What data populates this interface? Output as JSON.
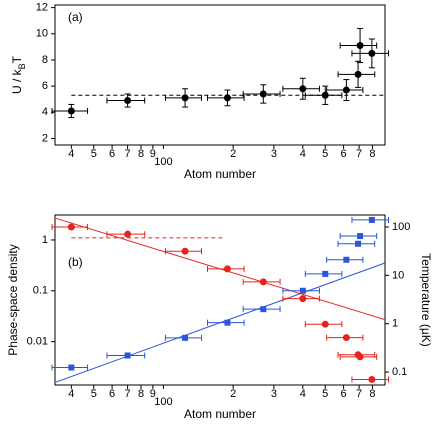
{
  "chart_data": [
    {
      "type": "errorbar",
      "label": "(a)",
      "xlabel": "Atom number",
      "ylabel_parts": [
        "U / k",
        "B",
        "T"
      ],
      "xscale": "log",
      "xlim": [
        34,
        906
      ],
      "xticks": [
        {
          "value": 40,
          "label": "4"
        },
        {
          "value": 50,
          "label": "5"
        },
        {
          "value": 60,
          "label": "6"
        },
        {
          "value": 70,
          "label": "7"
        },
        {
          "value": 80,
          "label": "8"
        },
        {
          "value": 90,
          "label": "9"
        },
        100,
        {
          "value": 200,
          "label": "2"
        },
        {
          "value": 300,
          "label": "3"
        },
        {
          "value": 400,
          "label": "4"
        },
        {
          "value": 500,
          "label": "5"
        },
        {
          "value": 600,
          "label": "6"
        },
        {
          "value": 700,
          "label": "7"
        },
        {
          "value": 800,
          "label": "8"
        }
      ],
      "ylim": [
        1.5,
        12.2
      ],
      "yticks": [
        2,
        4,
        6,
        8,
        10,
        12
      ],
      "series": [
        {
          "color": "#000000",
          "marker": "circle",
          "x": [
            40,
            70,
            124,
            189,
            270,
            400,
            500,
            617,
            693,
            707,
            795
          ],
          "values": [
            4.1,
            4.9,
            5.1,
            5.1,
            5.4,
            5.8,
            5.3,
            5.7,
            6.9,
            9.1,
            8.5
          ],
          "xerr": [
            7,
            13,
            22,
            34,
            49,
            72,
            90,
            110,
            125,
            127,
            143
          ],
          "yerr": [
            0.5,
            0.5,
            0.7,
            0.6,
            0.7,
            0.8,
            0.7,
            0.8,
            1.0,
            1.3,
            1.1
          ]
        }
      ],
      "reference_line": {
        "y": 5.3,
        "x": [
          40,
          906
        ],
        "color": "#000000"
      }
    },
    {
      "type": "errorbar",
      "label": "(b)",
      "xlabel": "Atom number",
      "ylabel": "Phase-space density",
      "y2label": "Temperature (µK)",
      "xscale": "log",
      "xlim": [
        34,
        906
      ],
      "xticks": [
        {
          "value": 40,
          "label": "4"
        },
        {
          "value": 50,
          "label": "5"
        },
        {
          "value": 60,
          "label": "6"
        },
        {
          "value": 70,
          "label": "7"
        },
        {
          "value": 80,
          "label": "8"
        },
        {
          "value": 90,
          "label": "9"
        },
        100,
        {
          "value": 200,
          "label": "2"
        },
        {
          "value": 300,
          "label": "3"
        },
        {
          "value": 400,
          "label": "4"
        },
        {
          "value": 500,
          "label": "5"
        },
        {
          "value": 600,
          "label": "6"
        },
        {
          "value": 700,
          "label": "7"
        },
        {
          "value": 800,
          "label": "8"
        }
      ],
      "yscale": "log",
      "ylim": [
        0.0014,
        3.1
      ],
      "yticks": [
        0.01,
        0.1,
        1
      ],
      "y2scale": "log",
      "y2lim": [
        0.054,
        177
      ],
      "y2ticks": [
        0.1,
        1,
        10,
        100
      ],
      "series": [
        {
          "color": "#e8231f",
          "marker": "circle",
          "x": [
            40,
            70,
            124,
            189,
            270,
            400,
            500,
            617,
            693,
            707,
            795
          ],
          "values": [
            1.8,
            1.3,
            0.6,
            0.27,
            0.15,
            0.07,
            0.022,
            0.012,
            0.0055,
            0.005,
            0.0018
          ],
          "xerr": [
            7,
            13,
            22,
            34,
            49,
            72,
            90,
            110,
            125,
            127,
            143
          ]
        },
        {
          "color": "#2a56d8",
          "marker": "square",
          "axis": "y2",
          "x": [
            40,
            70,
            124,
            189,
            270,
            400,
            500,
            617,
            693,
            707,
            795
          ],
          "values": [
            0.124,
            0.22,
            0.51,
            1.05,
            2.0,
            4.8,
            10.7,
            21,
            45,
            65,
            140
          ],
          "xerr": [
            7,
            13,
            22,
            34,
            49,
            72,
            90,
            110,
            125,
            127,
            143
          ]
        }
      ],
      "fits": [
        {
          "color": "#e8231f",
          "x": [
            34,
            906
          ],
          "values": [
            2.7,
            0.027
          ]
        },
        {
          "color": "#2a56d8",
          "axis": "y2",
          "x": [
            34,
            906
          ],
          "values": [
            0.061,
            18
          ]
        }
      ],
      "reference_line": {
        "y": 1.1,
        "x": [
          40,
          185
        ],
        "color": "#e8231f"
      }
    }
  ]
}
